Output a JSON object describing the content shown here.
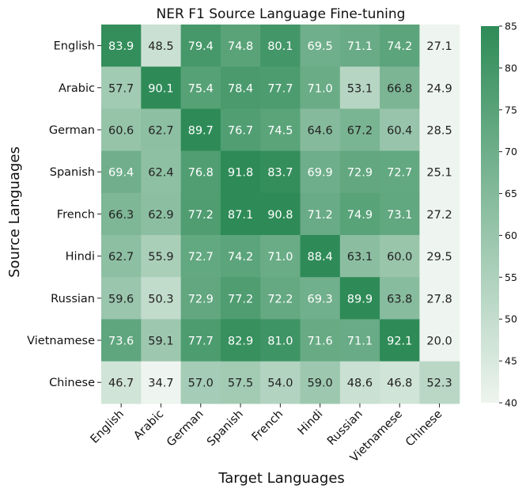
{
  "chart_data": {
    "type": "heatmap",
    "title": "NER F1 Source Language Fine-tuning",
    "xlabel": "Target Languages",
    "ylabel": "Source Languages",
    "x_categories": [
      "English",
      "Arabic",
      "German",
      "Spanish",
      "French",
      "Hindi",
      "Russian",
      "Vietnamese",
      "Chinese"
    ],
    "y_categories": [
      "English",
      "Arabic",
      "German",
      "Spanish",
      "French",
      "Hindi",
      "Russian",
      "Vietnamese",
      "Chinese"
    ],
    "values": [
      [
        83.9,
        48.5,
        79.4,
        74.8,
        80.1,
        69.5,
        71.1,
        74.2,
        27.1
      ],
      [
        57.7,
        90.1,
        75.4,
        78.4,
        77.7,
        71.0,
        53.1,
        66.8,
        24.9
      ],
      [
        60.6,
        62.7,
        89.7,
        76.7,
        74.5,
        64.6,
        67.2,
        60.4,
        28.5
      ],
      [
        69.4,
        62.4,
        76.8,
        91.8,
        83.7,
        69.9,
        72.9,
        72.7,
        25.1
      ],
      [
        66.3,
        62.9,
        77.2,
        87.1,
        90.8,
        71.2,
        74.9,
        73.1,
        27.2
      ],
      [
        62.7,
        55.9,
        72.7,
        74.2,
        71.0,
        88.4,
        63.1,
        60.0,
        29.5
      ],
      [
        59.6,
        50.3,
        72.9,
        77.2,
        72.2,
        69.3,
        89.9,
        63.8,
        27.8
      ],
      [
        73.6,
        59.1,
        77.7,
        82.9,
        81.0,
        71.6,
        71.1,
        92.1,
        20.0
      ],
      [
        46.7,
        34.7,
        57.0,
        57.5,
        54.0,
        59.0,
        48.6,
        46.8,
        52.3
      ]
    ],
    "colorbar": {
      "min": 40,
      "max": 85,
      "ticks": [
        40,
        45,
        50,
        55,
        60,
        65,
        70,
        75,
        80,
        85
      ]
    },
    "colors": {
      "low": "#eef4ef",
      "high": "#2e8b57"
    },
    "label_flip_threshold": 69
  }
}
